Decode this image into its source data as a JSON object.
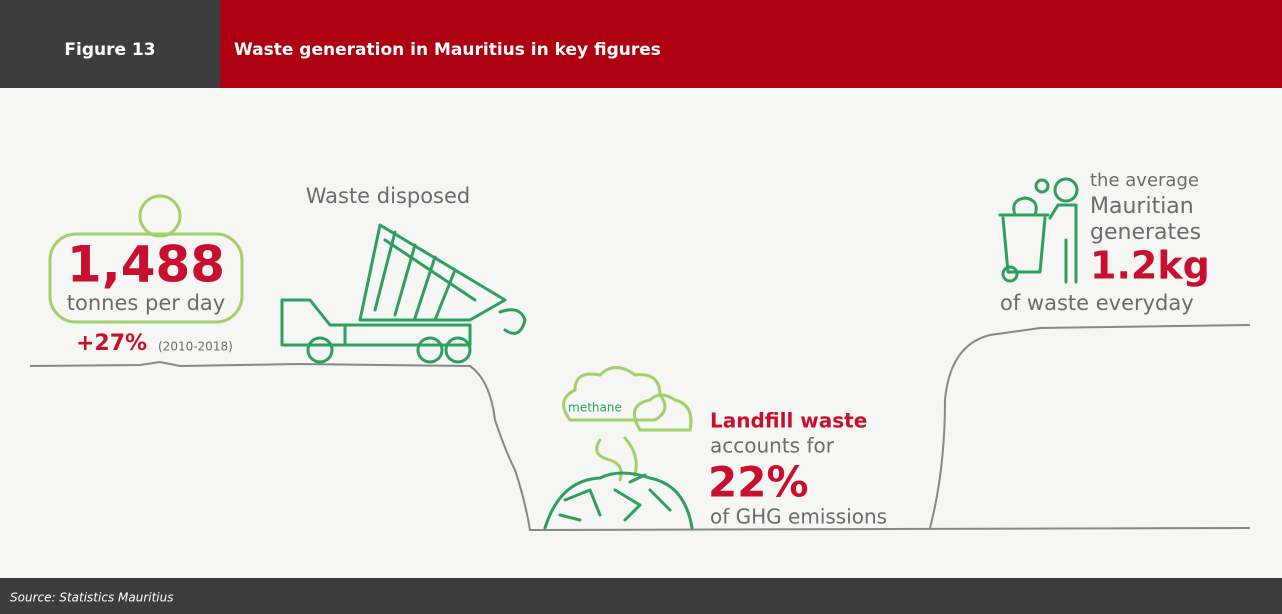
{
  "header": {
    "label": "Figure 13",
    "title": "Waste generation in Mauritius in key figures"
  },
  "daily_waste": {
    "value": "1,488",
    "unit": "tonnes per day",
    "change": "+27%",
    "period": "(2010-2018)",
    "caption": "Waste disposed"
  },
  "landfill": {
    "cloud": "methane",
    "lead": "Landfill waste",
    "text": "accounts for",
    "value": "22%",
    "tail": "of GHG emissions"
  },
  "per_person": {
    "line1": "the average",
    "line2": "Mauritian",
    "line3": "generates",
    "value": "1.2kg",
    "tail": "of waste everyday"
  },
  "source": "Source: Statistics Mauritius"
}
